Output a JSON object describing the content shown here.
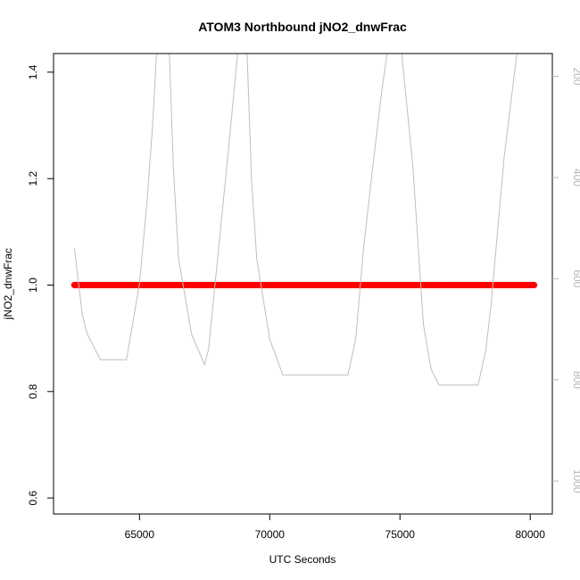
{
  "chart_data": {
    "type": "scatter",
    "title": "ATOM3 Northbound jNO2_dnwFrac",
    "xlabel": "UTC Seconds",
    "ylabel": "jNO2_dnwFrac",
    "xlim": [
      61700,
      80850
    ],
    "ylim": [
      0.57,
      1.435
    ],
    "x_ticks": [
      65000,
      70000,
      75000,
      80000
    ],
    "x_tick_labels": [
      "65000",
      "70000",
      "75000",
      "80000"
    ],
    "y_ticks": [
      0.6,
      0.8,
      1.0,
      1.2,
      1.4
    ],
    "y_tick_labels": [
      "0.6",
      "0.8",
      "1.0",
      "1.2",
      "1.4"
    ],
    "secondary_y": {
      "description_unit": "pressure",
      "reversed": true,
      "lim": [
        155,
        1065
      ],
      "ticks": [
        200,
        400,
        600,
        800,
        1000
      ],
      "tick_labels": [
        "200",
        "400",
        "600",
        "800",
        "1000"
      ],
      "color": "#b5b5b5"
    },
    "series": [
      {
        "style": "points",
        "color": "#ff0000",
        "x_start": 62500,
        "x_end": 80150,
        "y": 1.0
      },
      {
        "style": "line",
        "axis": "secondary",
        "color": "#bebebe",
        "x": [
          62500,
          62800,
          63000,
          63300,
          63500,
          64000,
          64500,
          65000,
          65300,
          65500,
          65650,
          65900,
          66150,
          66300,
          66500,
          67000,
          67500,
          67650,
          68000,
          68500,
          68850,
          69100,
          69300,
          69500,
          70000,
          70500,
          71000,
          72000,
          73000,
          73300,
          73600,
          74000,
          74300,
          74600,
          75000,
          75500,
          75900,
          76200,
          76500,
          77000,
          77500,
          78000,
          78300,
          78500,
          79000,
          79500,
          79700
        ],
        "y": [
          540,
          670,
          710,
          740,
          760,
          760,
          760,
          610,
          440,
          300,
          160,
          110,
          160,
          380,
          560,
          710,
          770,
          740,
          560,
          300,
          110,
          110,
          400,
          560,
          720,
          790,
          790,
          790,
          790,
          720,
          540,
          360,
          230,
          120,
          120,
          380,
          690,
          780,
          810,
          810,
          810,
          810,
          740,
          650,
          360,
          150,
          100
        ]
      }
    ]
  }
}
